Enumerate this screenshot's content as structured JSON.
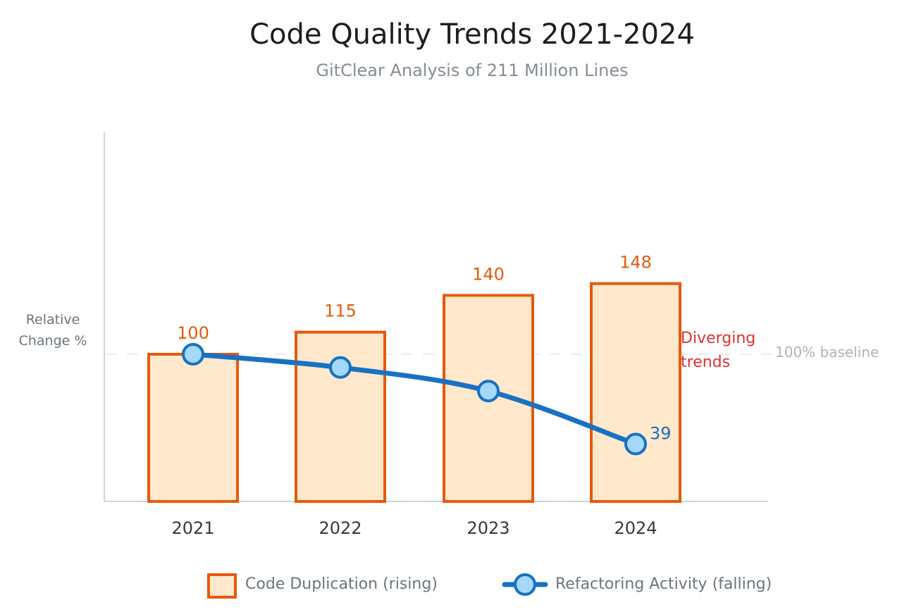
{
  "chart_data": {
    "type": "bar",
    "title": "Code Quality Trends 2021-2024",
    "subtitle": "GitClear Analysis of 211 Million Lines",
    "xlabel": "",
    "ylabel_lines": [
      "Relative",
      "Change %"
    ],
    "ylim": [
      0,
      250
    ],
    "grid": false,
    "categories": [
      "2021",
      "2022",
      "2023",
      "2024"
    ],
    "series": [
      {
        "name": "Code Duplication (rising)",
        "kind": "bar",
        "values": [
          100,
          115,
          140,
          148
        ],
        "labels": [
          "100",
          "115",
          "140",
          "148"
        ],
        "color": "#e8590c",
        "fill": "#ffe8cc"
      },
      {
        "name": "Refactoring Activity (falling)",
        "kind": "line",
        "values": [
          100,
          91,
          75,
          39
        ],
        "labels": [
          "",
          "",
          "",
          "39"
        ],
        "color": "#1971c2",
        "marker_fill": "#a5d8ff"
      }
    ],
    "reference_line": {
      "value": 100,
      "label": "100% baseline",
      "color": "#e9ecef"
    },
    "annotation": {
      "lines": [
        "Diverging",
        "trends"
      ],
      "color": "#e03131",
      "near": "2024"
    },
    "legend": {
      "placement": "bottom-center",
      "items": [
        "Code Duplication (rising)",
        "Refactoring Activity (falling)"
      ]
    }
  }
}
